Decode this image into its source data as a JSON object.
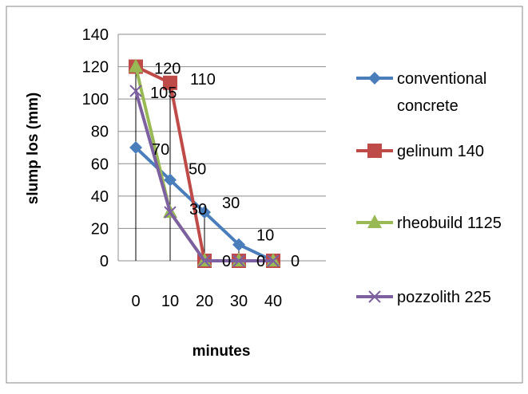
{
  "chart_data": {
    "type": "line",
    "title": "",
    "xlabel": "minutes",
    "ylabel": "slump los (mm)",
    "x": [
      0,
      10,
      20,
      30,
      40
    ],
    "x_tick_labels": [
      "0",
      "10",
      "20",
      "30",
      "40"
    ],
    "y_tick_labels": [
      "0",
      "20",
      "40",
      "60",
      "80",
      "100",
      "120",
      "140"
    ],
    "ylim": [
      0,
      140
    ],
    "grid": "horizontal",
    "legend_position": "right",
    "series": [
      {
        "name": "conventional concrete",
        "legend_lines": [
          "conventional",
          "concrete"
        ],
        "values": [
          70,
          50,
          30,
          10,
          0
        ],
        "data_labels": [
          "70",
          "50",
          "30",
          "10",
          "0"
        ],
        "color": "#4a7ebb",
        "marker": "diamond"
      },
      {
        "name": "gelinum 140",
        "legend_lines": [
          "gelinum 140"
        ],
        "values": [
          120,
          110,
          0,
          0,
          0
        ],
        "data_labels": [
          "120",
          "110",
          "0",
          "0",
          "0"
        ],
        "color": "#be4b48",
        "marker": "square"
      },
      {
        "name": "rheobuild 1125",
        "legend_lines": [
          "rheobuild 1125"
        ],
        "values": [
          120,
          30,
          0,
          0,
          0
        ],
        "data_labels": [],
        "color": "#98b954",
        "marker": "triangle"
      },
      {
        "name": "pozzolith 225",
        "legend_lines": [
          "pozzolith 225"
        ],
        "values": [
          105,
          30,
          0,
          0,
          0
        ],
        "data_labels": [
          "105",
          "30",
          "0",
          "0",
          "0"
        ],
        "color": "#7d60a0",
        "marker": "x"
      }
    ]
  }
}
